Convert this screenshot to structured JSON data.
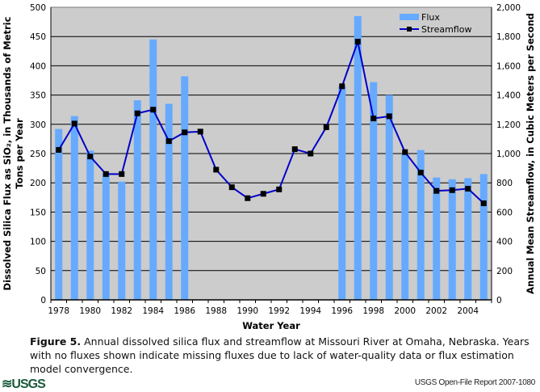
{
  "chart_data": {
    "type": "bar+line",
    "categories": [
      1978,
      1979,
      1980,
      1981,
      1982,
      1983,
      1984,
      1985,
      1986,
      1987,
      1988,
      1989,
      1990,
      1991,
      1992,
      1993,
      1994,
      1995,
      1996,
      1997,
      1998,
      1999,
      2000,
      2001,
      2002,
      2003,
      2004,
      2005
    ],
    "series": [
      {
        "name": "Flux",
        "type": "bar",
        "axis": "left",
        "color": "#66aaff",
        "values": [
          292,
          314,
          255,
          217,
          202,
          341,
          445,
          335,
          382,
          null,
          null,
          null,
          null,
          null,
          null,
          null,
          null,
          null,
          365,
          485,
          372,
          350,
          250,
          256,
          209,
          206,
          208,
          215
        ]
      },
      {
        "name": "Streamflow",
        "type": "line",
        "axis": "right",
        "color": "#0000cc",
        "marker_color": "#000000",
        "values": [
          1025,
          1205,
          980,
          860,
          860,
          1275,
          1300,
          1085,
          1145,
          1150,
          890,
          770,
          695,
          725,
          755,
          1030,
          1000,
          1180,
          1460,
          1765,
          1240,
          1255,
          1010,
          870,
          745,
          750,
          760,
          660
        ]
      }
    ],
    "xlabel": "Water Year",
    "ylabel": "Dissolved Silica Flux as SiO₂, in Thousands of Metric Tons per Year",
    "ylabel_line1": "Dissolved Silica Flux as SiO₂, in Thousands of Metric",
    "ylabel_line2": "Tons per Year",
    "y2label": "Annual Mean Streamflow, in Cubic Meters per Second",
    "ylim": [
      0,
      500
    ],
    "y2lim": [
      0,
      2000
    ],
    "yticks": [
      "0",
      "50",
      "100",
      "150",
      "200",
      "250",
      "300",
      "350",
      "400",
      "450",
      "500"
    ],
    "y2ticks": [
      "0",
      "200",
      "400",
      "600",
      "800",
      "1,000",
      "1,200",
      "1,400",
      "1,600",
      "1,800",
      "2,000"
    ],
    "xticklabels": [
      "1978",
      "1980",
      "1982",
      "1984",
      "1986",
      "1988",
      "1990",
      "1992",
      "1994",
      "1996",
      "1998",
      "2000",
      "2002",
      "2004"
    ],
    "grid": true,
    "legend": "top-right",
    "background": "#cccccc"
  },
  "caption": {
    "label": "Figure 5.",
    "text": " Annual dissolved silica flux and streamflow at Missouri River at Omaha, Nebraska. Years with no fluxes shown indicate missing fluxes due to lack of water-quality data or flux estimation model convergence."
  },
  "footer": {
    "logo": "USGS",
    "report": "USGS Open-File Report 2007-1080"
  }
}
